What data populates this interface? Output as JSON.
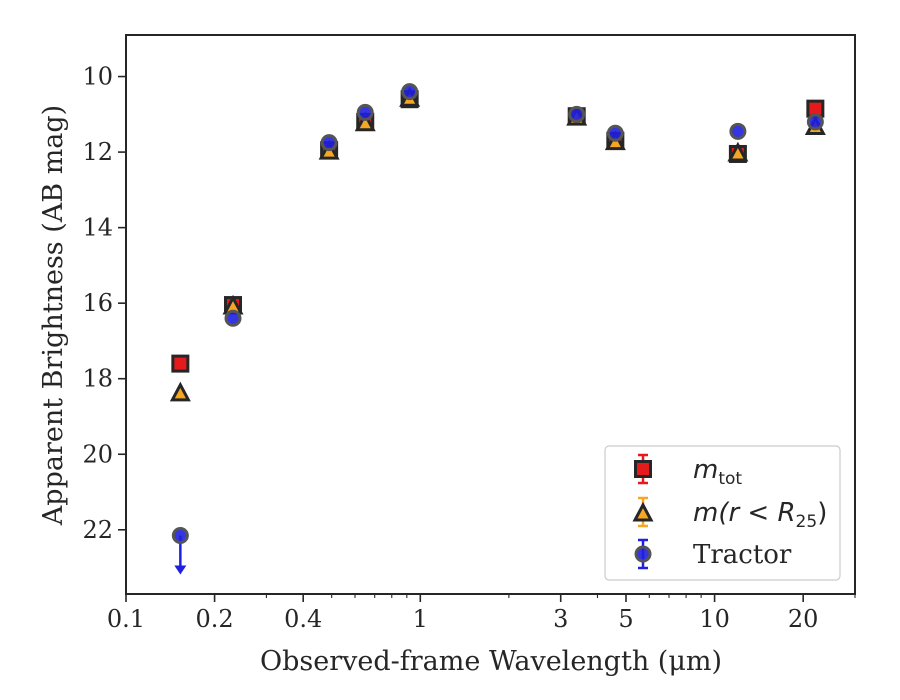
{
  "chart_data": {
    "type": "scatter",
    "xscale": "log",
    "yaxis_inverted": true,
    "xlim": [
      0.1,
      30
    ],
    "ylim": [
      23.7,
      8.9
    ],
    "xlabel": "Observed-frame Wavelength (μm)",
    "ylabel": "Apparent Brightness (AB mag)",
    "x_ticks": [
      0.1,
      0.2,
      0.4,
      1,
      3,
      5,
      10,
      20
    ],
    "x_tick_labels": [
      "0.1",
      "0.2",
      "0.4",
      "1",
      "3",
      "5",
      "10",
      "20"
    ],
    "y_ticks": [
      10,
      12,
      14,
      16,
      18,
      20,
      22
    ],
    "y_tick_labels": [
      "10",
      "12",
      "14",
      "16",
      "18",
      "20",
      "22"
    ],
    "grid": false,
    "legend_position": "lower-right",
    "series": [
      {
        "name": "m_tot",
        "legend_label": "m",
        "legend_subscript": "tot",
        "marker": "square",
        "color": "#e41a1c",
        "x": [
          0.153,
          0.231,
          0.49,
          0.65,
          0.92,
          3.4,
          4.6,
          12.0,
          22.0
        ],
        "y": [
          17.6,
          16.05,
          11.95,
          11.2,
          10.6,
          11.05,
          11.7,
          12.05,
          10.85
        ]
      },
      {
        "name": "m(r < R25)",
        "legend_label": "m(r < R",
        "legend_subscript": "25",
        "legend_suffix": ")",
        "marker": "triangle",
        "color": "#f5a623",
        "x": [
          0.153,
          0.231,
          0.49,
          0.65,
          0.92,
          3.4,
          4.6,
          12.0,
          22.0
        ],
        "y": [
          18.4,
          16.1,
          12.0,
          11.25,
          10.6,
          11.1,
          11.75,
          12.05,
          11.35
        ]
      },
      {
        "name": "Tractor",
        "legend_label": "Tractor",
        "marker": "circle",
        "color": "#1f1fe0",
        "x": [
          0.153,
          0.231,
          0.49,
          0.65,
          0.92,
          3.4,
          4.6,
          12.0,
          22.0
        ],
        "y": [
          22.15,
          16.4,
          11.75,
          10.95,
          10.4,
          11.0,
          11.5,
          11.45,
          11.2
        ],
        "upper_limit_index": 0
      }
    ]
  }
}
